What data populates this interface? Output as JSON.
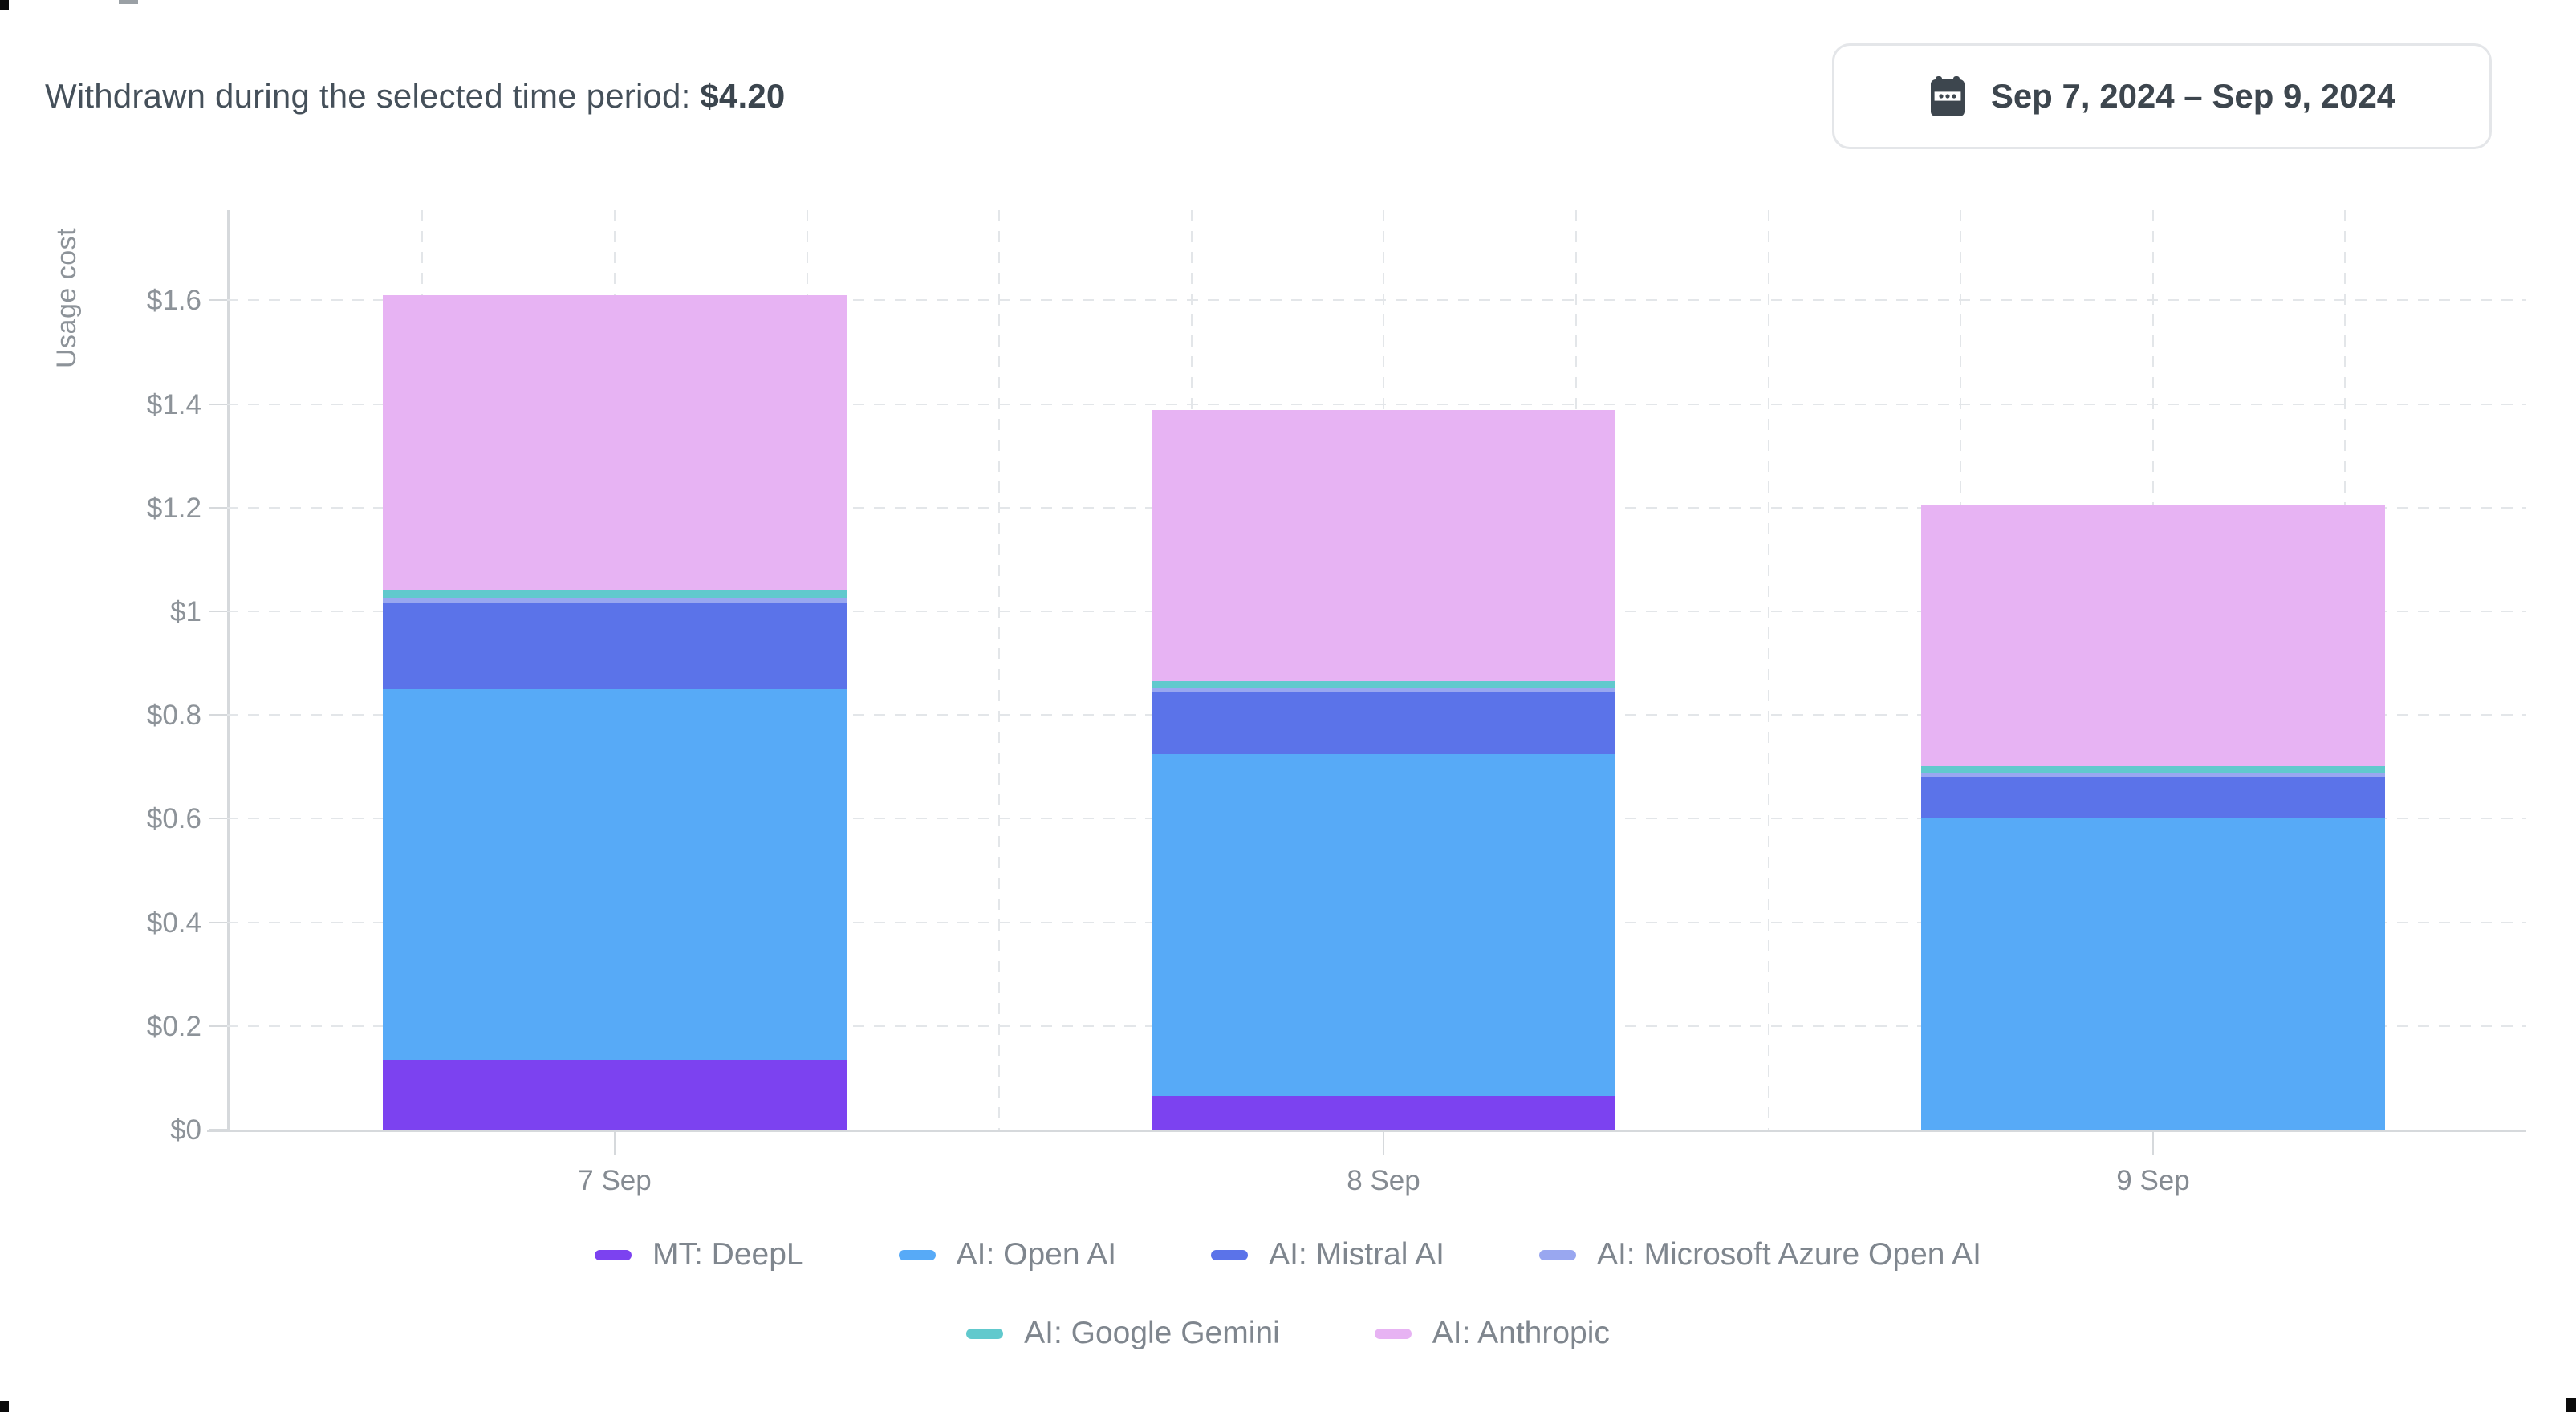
{
  "header": {
    "title": "Withdrawn during the selected time period:",
    "amount": "$4.20"
  },
  "date_picker": {
    "icon": "calendar-icon",
    "label": "Sep 7, 2024 – Sep 9, 2024"
  },
  "chart_data": {
    "type": "bar",
    "stacked": true,
    "ylabel": "Usage cost",
    "xlabel": "",
    "categories": [
      "7 Sep",
      "8 Sep",
      "9 Sep"
    ],
    "series": [
      {
        "name": "MT: DeepL",
        "color": "#7c42f0",
        "values": [
          0.135,
          0.065,
          0
        ]
      },
      {
        "name": "AI: Open AI",
        "color": "#57aaf7",
        "values": [
          0.715,
          0.66,
          0.6
        ]
      },
      {
        "name": "AI: Mistral AI",
        "color": "#5b73e9",
        "values": [
          0.165,
          0.12,
          0.08
        ]
      },
      {
        "name": "AI: Microsoft Azure Open AI",
        "color": "#99a7f0",
        "values": [
          0.009,
          0.006,
          0.007
        ]
      },
      {
        "name": "AI: Google Gemini",
        "color": "#61c9cd",
        "values": [
          0.016,
          0.015,
          0.015
        ]
      },
      {
        "name": "AI: Anthropic",
        "color": "#e7b3f3",
        "values": [
          0.57,
          0.523,
          0.503
        ]
      }
    ],
    "day_totals": [
      1.61,
      1.389,
      1.205
    ],
    "y_ticks": [
      {
        "label": "$0",
        "value": 0
      },
      {
        "label": "$0.2",
        "value": 0.2
      },
      {
        "label": "$0.4",
        "value": 0.4
      },
      {
        "label": "$0.6",
        "value": 0.6
      },
      {
        "label": "$0.8",
        "value": 0.8
      },
      {
        "label": "$1",
        "value": 1
      },
      {
        "label": "$1.2",
        "value": 1.2
      },
      {
        "label": "$1.4",
        "value": 1.4
      },
      {
        "label": "$1.6",
        "value": 1.6
      }
    ],
    "ylim": [
      0,
      1.78
    ],
    "grid": true,
    "legend_position": "bottom",
    "legend_rows": [
      [
        "MT: DeepL",
        "AI: Open AI",
        "AI: Mistral AI",
        "AI: Microsoft Azure Open AI"
      ],
      [
        "AI: Google Gemini",
        "AI: Anthropic"
      ]
    ]
  },
  "colors": {
    "text_dark": "#3b454e",
    "text_gray": "#8d9399",
    "legend_text": "#7f868e",
    "grid": "#e3e6e9",
    "axis": "#d6d9dc",
    "button_border": "#e4e6e9",
    "background": "#ffffff"
  }
}
